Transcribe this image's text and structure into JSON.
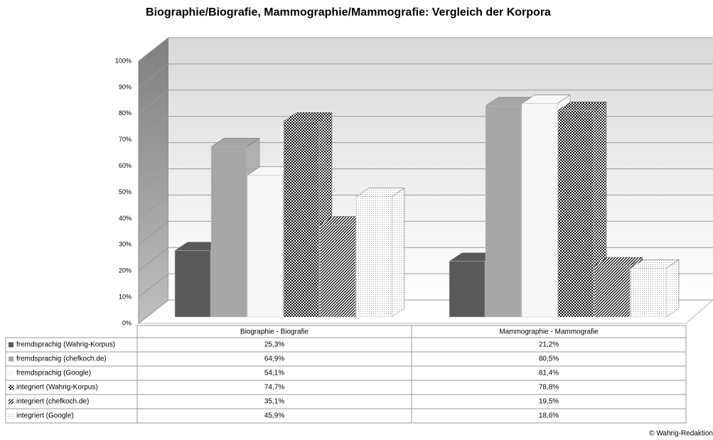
{
  "chart_data": {
    "type": "bar3d",
    "title": "Biographie/Biografie, Mammographie/Mammografie: Vergleich der Korpora",
    "categories": [
      "Biographie - Biografie",
      "Mammographie - Mammografie"
    ],
    "series": [
      {
        "name": "fremdsprachig (Wahrig-Korpus)",
        "color": "#595959",
        "values": [
          25.3,
          21.2
        ],
        "value_labels": [
          "25,3%",
          "21,2%"
        ]
      },
      {
        "name": "fremdsprachig (chefkoch.de)",
        "color": "#a6a6a6",
        "values": [
          64.9,
          80.5
        ],
        "value_labels": [
          "64,9%",
          "80,5%"
        ]
      },
      {
        "name": "fremdsprachig (Google)",
        "color": "#f7f7f7",
        "values": [
          54.1,
          81.4
        ],
        "value_labels": [
          "54,1%",
          "81,4%"
        ]
      },
      {
        "name": "integriert (Wahrig-Korpus)",
        "color": "checker",
        "values": [
          74.7,
          78.8
        ],
        "value_labels": [
          "74,7%",
          "78,8%"
        ]
      },
      {
        "name": "integriert (chefkoch.de)",
        "color": "stripes",
        "values": [
          35.1,
          19.5
        ],
        "value_labels": [
          "35,1%",
          "19,5%"
        ]
      },
      {
        "name": "integriert (Google)",
        "color": "dots",
        "values": [
          45.9,
          18.6
        ],
        "value_labels": [
          "45,9%",
          "18,6%"
        ]
      }
    ],
    "ylim": [
      0,
      100
    ],
    "yticks": [
      {
        "value": 0,
        "label": "0%"
      },
      {
        "value": 10,
        "label": "10%"
      },
      {
        "value": 20,
        "label": "20%"
      },
      {
        "value": 30,
        "label": "30%"
      },
      {
        "value": 40,
        "label": "40%"
      },
      {
        "value": 50,
        "label": "50%"
      },
      {
        "value": 60,
        "label": "60%"
      },
      {
        "value": 70,
        "label": "70%"
      },
      {
        "value": 80,
        "label": "80%"
      },
      {
        "value": 90,
        "label": "90%"
      },
      {
        "value": 100,
        "label": "100%"
      }
    ],
    "grid": true,
    "footer": "© Wahrig-Redaktion"
  }
}
